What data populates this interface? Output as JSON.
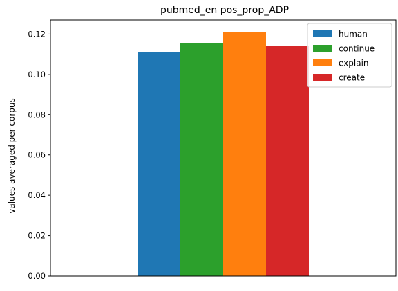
{
  "chart_data": {
    "type": "bar",
    "title": "pubmed_en pos_prop_ADP",
    "xlabel": "",
    "ylabel": "values averaged per corpus",
    "ylim": [
      0,
      0.127
    ],
    "yticks": [
      "0.00",
      "0.02",
      "0.04",
      "0.06",
      "0.08",
      "0.10",
      "0.12"
    ],
    "grid": false,
    "legend_position": "top-right",
    "categories": [
      ""
    ],
    "series": [
      {
        "name": "human",
        "values": [
          0.111
        ],
        "color": "#1f77b4"
      },
      {
        "name": "continue",
        "values": [
          0.1155
        ],
        "color": "#2ca02c"
      },
      {
        "name": "explain",
        "values": [
          0.121
        ],
        "color": "#ff7f0e"
      },
      {
        "name": "create",
        "values": [
          0.114
        ],
        "color": "#d62728"
      }
    ]
  }
}
